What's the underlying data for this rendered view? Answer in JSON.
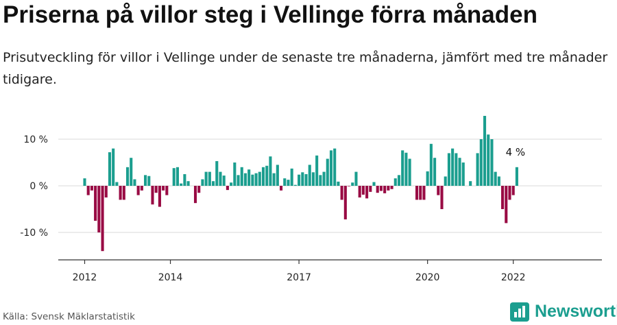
{
  "header": {
    "title": "Priserna på villor steg i Vellinge förra månaden",
    "subtitle": "Prisutveckling för villor i Vellinge under de senaste tre månaderna, jämfört med tre månader tidigare."
  },
  "footer": {
    "source": "Källa: Svensk Mäklarstatistik",
    "brand": "Newsworthy"
  },
  "colors": {
    "positive": "#1b9e8f",
    "negative": "#990b44",
    "brand": "#1b9e8f"
  },
  "chart_data": {
    "type": "bar",
    "y_unit": "%",
    "ylim": [
      -16,
      16
    ],
    "y_ticks": [
      10,
      0,
      -10
    ],
    "y_tick_labels": [
      "10 %",
      "0 %",
      "-10 %"
    ],
    "x_tick_labels": [
      "2012",
      "2014",
      "2017",
      "2020",
      "2022"
    ],
    "grid": true,
    "last_label": "4 %",
    "values": [
      1.6,
      -2,
      -1,
      -7.5,
      -10,
      -14,
      -2.5,
      7.2,
      8,
      0.8,
      -3,
      -3,
      4,
      6,
      1.4,
      -2,
      -1,
      2.3,
      2.1,
      -4,
      -1.5,
      -4.5,
      -1,
      -2,
      0,
      3.8,
      4,
      0.5,
      2.5,
      1,
      0,
      -3.7,
      -1.5,
      1.4,
      3,
      3,
      1,
      5.3,
      3,
      2.2,
      -0.9,
      0.7,
      5,
      2.3,
      4,
      2.7,
      3.5,
      2.4,
      2.7,
      3,
      4,
      4.3,
      6.3,
      2.7,
      4.5,
      -1,
      1.6,
      1.3,
      3.7,
      0.2,
      2.4,
      2.9,
      2.5,
      4.5,
      2.9,
      6.5,
      2.3,
      3,
      5.8,
      7.6,
      8,
      0.9,
      -3,
      -7.2,
      -0.1,
      0.7,
      3,
      -2.5,
      -1.9,
      -2.7,
      -1.3,
      0.8,
      -1.5,
      -1.1,
      -1.6,
      -1,
      -0.7,
      1.6,
      2.3,
      7.6,
      7.1,
      5.8,
      0,
      -3,
      -3,
      -3,
      3.1,
      9,
      6,
      -2,
      -5,
      2,
      7,
      8,
      7,
      6,
      5,
      0,
      1,
      0,
      7,
      10,
      15,
      11,
      10,
      3,
      2,
      -5,
      -8,
      -3,
      -2,
      4
    ],
    "x_ticks_at": [
      2012,
      2014,
      2017,
      2020,
      2022
    ],
    "start": "2012-01"
  }
}
